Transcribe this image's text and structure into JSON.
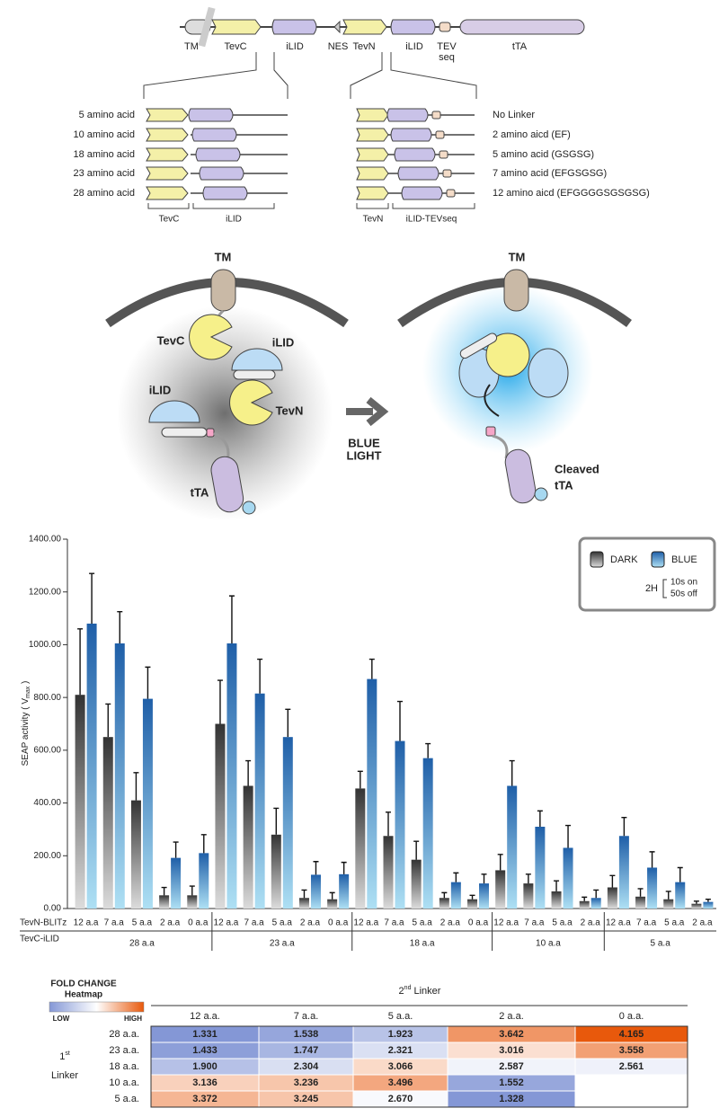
{
  "construct": {
    "labels": [
      "TM",
      "TevC",
      "iLID",
      "NES",
      "TevN",
      "iLID",
      "TEV",
      "seq",
      "tTA"
    ]
  },
  "linkers_c": {
    "items": [
      "5 amino acid",
      "10 amino acid",
      "18 amino acid",
      "23 amino acid",
      "28 amino acid"
    ],
    "parts": [
      "TevC",
      "iLID"
    ]
  },
  "linkers_n": {
    "items": [
      "No Linker",
      "2 amino aicd (EF)",
      "5 amino acid (GSGSG)",
      "7 amino acid (EFGSGSG)",
      "12 amino aicd (EFGGGGSGSGSG)"
    ],
    "parts": [
      "TevN",
      "iLID-TEVseq"
    ]
  },
  "cartoon": {
    "dark": [
      "TM",
      "TevC",
      "iLID",
      "iLID",
      "TevN",
      "tTA"
    ],
    "arrow_label": [
      "BLUE",
      "LIGHT"
    ],
    "light": [
      "TM",
      "Cleaved",
      "tTA"
    ]
  },
  "chart_data": {
    "type": "bar",
    "y_label": {
      "text": "SEAP activity ( V",
      "sub": "max",
      "end": " )"
    },
    "row_labels": [
      "TevN-BLITz",
      "TevC-iLID"
    ],
    "groups": [
      {
        "name": "28 a.a",
        "categories": [
          "12 a.a",
          "7 a.a",
          "5 a.a",
          "2 a.a",
          "0 a.a"
        ]
      },
      {
        "name": "23 a.a",
        "categories": [
          "12 a.a",
          "7 a.a",
          "5 a.a",
          "2 a.a",
          "0 a.a"
        ]
      },
      {
        "name": "18 a.a",
        "categories": [
          "12 a.a",
          "7 a.a",
          "5 a.a",
          "2 a.a",
          "0 a.a"
        ]
      },
      {
        "name": "10 a.a",
        "categories": [
          "12 a.a",
          "7 a.a",
          "5 a.a",
          "2 a.a"
        ]
      },
      {
        "name": "5 a.a",
        "categories": [
          "12 a.a",
          "7 a.a",
          "5 a.a",
          "2 a.a"
        ]
      }
    ],
    "series": [
      {
        "name": "DARK",
        "color": "#333333",
        "light_color": "#dcdcdc",
        "values": [
          810,
          650,
          410,
          50,
          50,
          700,
          465,
          280,
          40,
          35,
          455,
          275,
          185,
          40,
          35,
          145,
          95,
          65,
          28,
          80,
          45,
          35,
          18
        ],
        "errors": [
          250,
          125,
          105,
          30,
          35,
          165,
          95,
          100,
          30,
          25,
          65,
          90,
          70,
          20,
          15,
          60,
          35,
          40,
          15,
          45,
          30,
          30,
          10
        ]
      },
      {
        "name": "BLUE",
        "color": "#1f5fa8",
        "light_color": "#aee0f4",
        "values": [
          1080,
          1005,
          795,
          192,
          210,
          1005,
          815,
          650,
          128,
          130,
          870,
          635,
          570,
          100,
          95,
          465,
          310,
          230,
          40,
          275,
          155,
          100,
          25
        ],
        "errors": [
          190,
          120,
          120,
          60,
          70,
          180,
          130,
          105,
          50,
          45,
          75,
          150,
          55,
          35,
          35,
          95,
          60,
          85,
          30,
          70,
          60,
          55,
          10
        ]
      }
    ],
    "ylim": [
      0,
      1400
    ],
    "yticks": [
      {
        "value": 0,
        "label": "0.00"
      },
      {
        "value": 200,
        "label": "200.00"
      },
      {
        "value": 400,
        "label": "400.00"
      },
      {
        "value": 600,
        "label": "600.00"
      },
      {
        "value": 800,
        "label": "800.00"
      },
      {
        "value": 1000,
        "label": "1000.00"
      },
      {
        "value": 1200,
        "label": "1200.00"
      },
      {
        "value": 1400,
        "label": "1400.00"
      }
    ],
    "legend_note": {
      "time": "2H",
      "on": "10s on",
      "off": "50s off"
    }
  },
  "heatmap": {
    "title": "FOLD CHANGE",
    "subtitle": "Heatmap",
    "low_label": "LOW",
    "high_label": "HIGH",
    "low_color": "#8497d6",
    "high_color": "#e8590c",
    "column_title": {
      "number": "2",
      "suffix": "nd",
      "text": "Linker"
    },
    "row_title": {
      "number": "1",
      "suffix": "st",
      "text": "Linker"
    },
    "columns": [
      "12 a.a.",
      "7 a.a.",
      "5 a.a.",
      "2 a.a.",
      "0 a.a."
    ],
    "rows": [
      "28 a.a.",
      "23 a.a.",
      "18 a.a.",
      "10 a.a.",
      "5 a.a."
    ],
    "values": [
      [
        1.331,
        1.538,
        1.923,
        3.642,
        4.165
      ],
      [
        1.433,
        1.747,
        2.321,
        3.016,
        3.558
      ],
      [
        1.9,
        2.304,
        3.066,
        2.587,
        2.561
      ],
      [
        3.136,
        3.236,
        3.496,
        1.552,
        null
      ],
      [
        3.372,
        3.245,
        2.67,
        1.328,
        null
      ]
    ],
    "value_labels": [
      [
        "1.331",
        "1.538",
        "1.923",
        "3.642",
        "4.165"
      ],
      [
        "1.433",
        "1.747",
        "2.321",
        "3.016",
        "3.558"
      ],
      [
        "1.900",
        "2.304",
        "3.066",
        "2.587",
        "2.561"
      ],
      [
        "3.136",
        "3.236",
        "3.496",
        "1.552",
        null
      ],
      [
        "3.372",
        "3.245",
        "2.670",
        "1.328",
        null
      ]
    ]
  }
}
